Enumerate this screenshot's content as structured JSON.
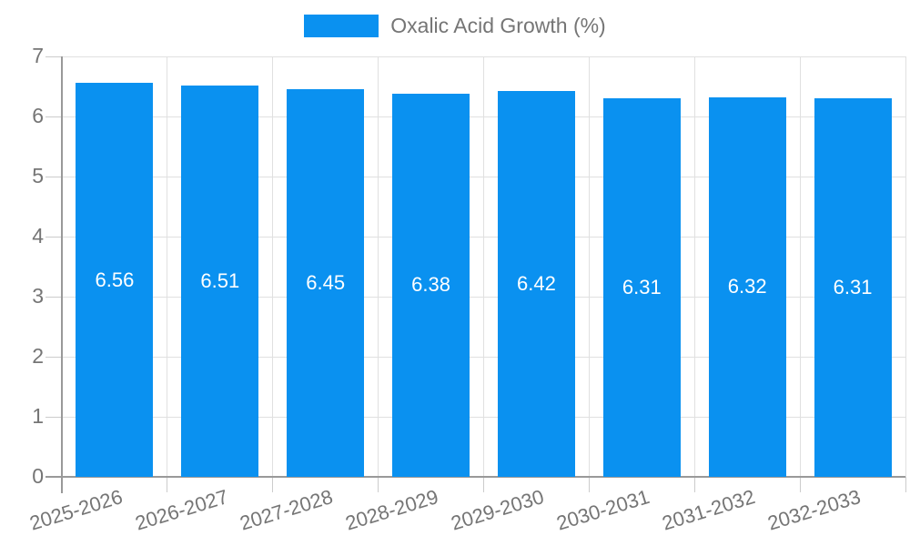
{
  "chart_data": {
    "type": "bar",
    "title": "",
    "legend": {
      "label": "Oxalic Acid Growth (%)",
      "position": "top-center"
    },
    "categories": [
      "2025-2026",
      "2026-2027",
      "2027-2028",
      "2028-2029",
      "2029-2030",
      "2030-2031",
      "2031-2032",
      "2032-2033"
    ],
    "values": [
      6.56,
      6.51,
      6.45,
      6.38,
      6.42,
      6.31,
      6.32,
      6.31
    ],
    "value_labels": [
      "6.56",
      "6.51",
      "6.45",
      "6.38",
      "6.42",
      "6.31",
      "6.32",
      "6.31"
    ],
    "xlabel": "",
    "ylabel": "",
    "ylim": [
      0,
      7
    ],
    "ytick_step": 1,
    "yticks": [
      0,
      1,
      2,
      3,
      4,
      5,
      6,
      7
    ],
    "grid": true,
    "x_label_rotation_deg": -17,
    "colors": {
      "bar": "#0a91f0",
      "value_label": "#ffffff",
      "axis_line": "#999999",
      "gridline": "#e0e0e0",
      "tick": "#cccccc",
      "text": "#757575"
    }
  }
}
